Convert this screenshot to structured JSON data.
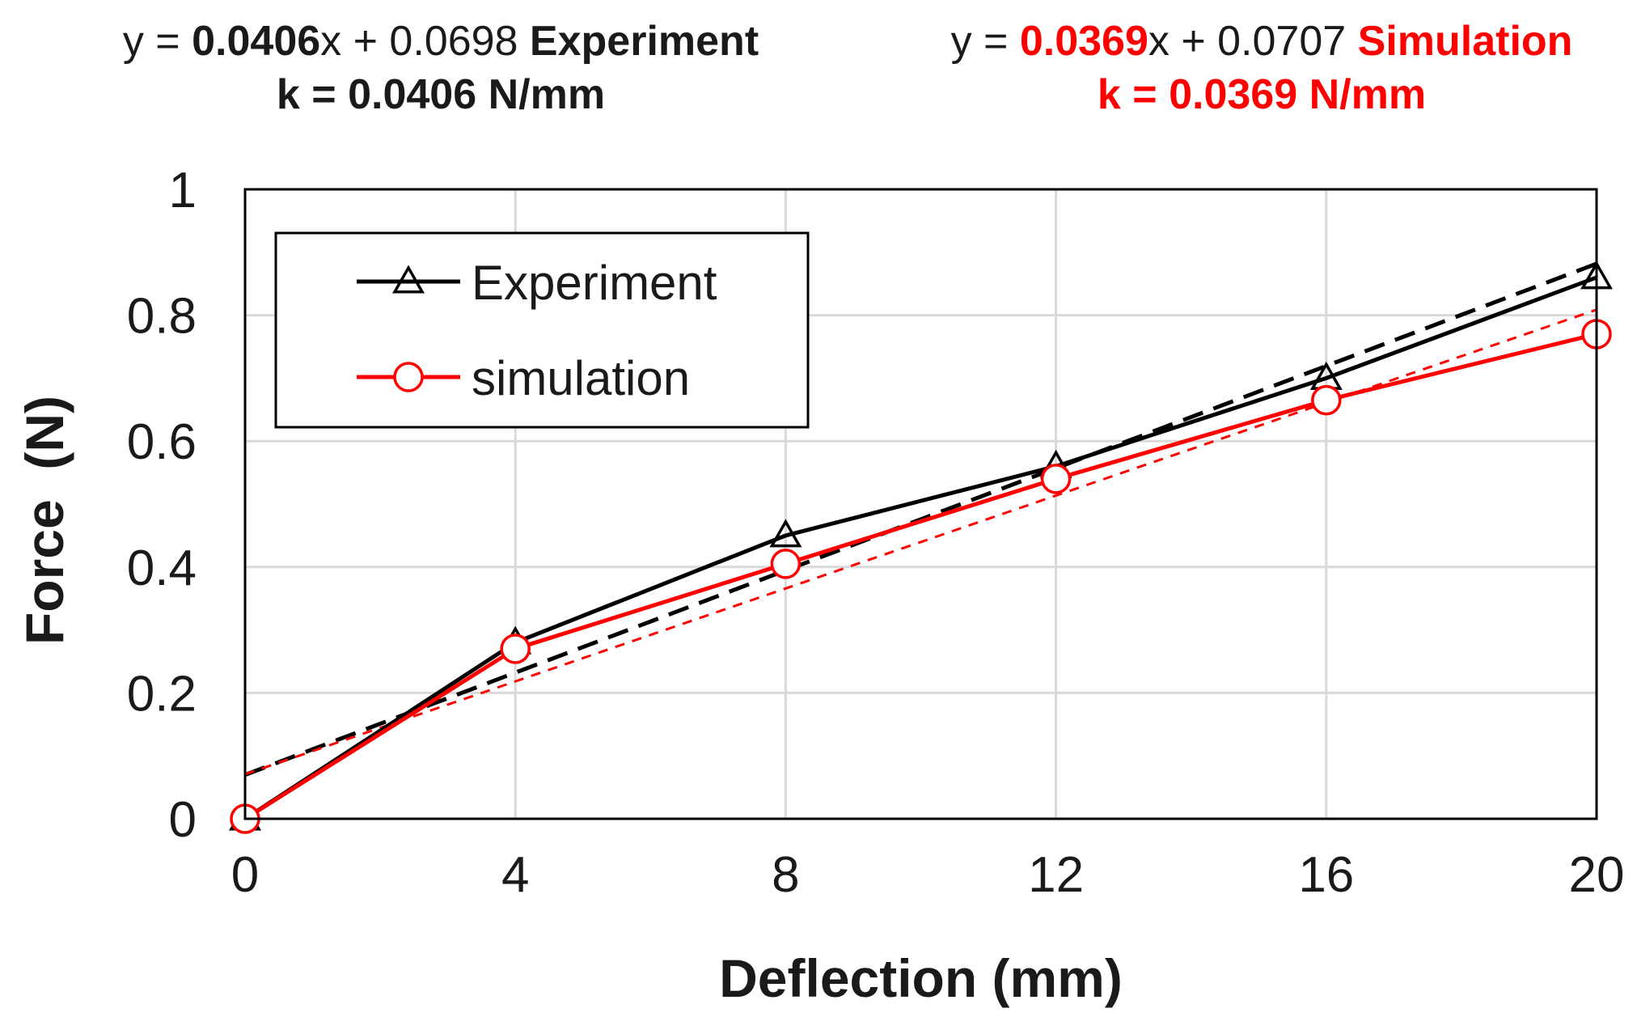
{
  "annotations": {
    "experiment": {
      "prefix": "y = ",
      "slope": "0.0406",
      "mid": "x + 0.0698 ",
      "label": "Experiment",
      "k_line": "k = 0.0406 N/mm",
      "color": "#000000"
    },
    "simulation": {
      "prefix": "y = ",
      "slope": "0.0369",
      "mid": "x + 0.0707 ",
      "label": "Simulation",
      "k_line": "k = 0.0369 N/mm",
      "color": "#ff0000"
    }
  },
  "chart_data": {
    "type": "line",
    "title": "",
    "xlabel": "Deflection (mm)",
    "ylabel": "Force  (N)",
    "xlim": [
      0,
      20
    ],
    "ylim": [
      0,
      1
    ],
    "xticks": [
      0,
      4,
      8,
      12,
      16,
      20
    ],
    "xtick_labels": [
      "0",
      "4",
      "8",
      "12",
      "16",
      "20"
    ],
    "yticks": [
      0,
      0.2,
      0.4,
      0.6,
      0.8,
      1
    ],
    "ytick_labels": [
      "0",
      "0.2",
      "0.4",
      "0.6",
      "0.8",
      "1"
    ],
    "grid": true,
    "legend_position": "top-left",
    "x": [
      0,
      4,
      8,
      12,
      16,
      20
    ],
    "series": [
      {
        "name": "Experiment",
        "color": "#000000",
        "marker": "triangle",
        "values": [
          0,
          0.28,
          0.45,
          0.56,
          0.7,
          0.86
        ]
      },
      {
        "name": "simulation",
        "color": "#ff0000",
        "marker": "circle",
        "values": [
          0,
          0.27,
          0.405,
          0.54,
          0.665,
          0.77
        ]
      }
    ],
    "trendlines": [
      {
        "name": "Experiment linear fit",
        "color": "#000000",
        "slope": 0.0406,
        "intercept": 0.0698,
        "style": "dashed"
      },
      {
        "name": "Simulation linear fit",
        "color": "#ff0000",
        "slope": 0.0369,
        "intercept": 0.0707,
        "style": "dashed"
      }
    ]
  }
}
